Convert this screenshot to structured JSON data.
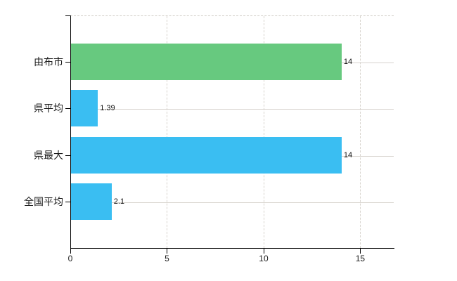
{
  "chart_data": {
    "type": "bar",
    "orientation": "horizontal",
    "title": "",
    "xlabel": "",
    "ylabel": "",
    "categories": [
      "由布市",
      "県平均",
      "県最大",
      "全国平均"
    ],
    "values": [
      14,
      1.39,
      14,
      2.1
    ],
    "value_labels": [
      "14",
      "1.39",
      "14",
      "2.1"
    ],
    "bar_colors": [
      "#67c97f",
      "#3abef2",
      "#3abef2",
      "#3abef2"
    ],
    "xlim": [
      0,
      16.73
    ],
    "x_ticks": [
      0,
      5,
      10,
      15
    ],
    "x_tick_labels": [
      "0",
      "5",
      "10",
      "15"
    ],
    "grid": true,
    "legend": "none"
  },
  "style": {
    "background": "#ffffff",
    "axis_color": "#000000",
    "grid_color": "#d7d3cd",
    "text_color": "#1c1c1c",
    "green_bar": "#67c97f",
    "blue_bar": "#3abef2"
  }
}
